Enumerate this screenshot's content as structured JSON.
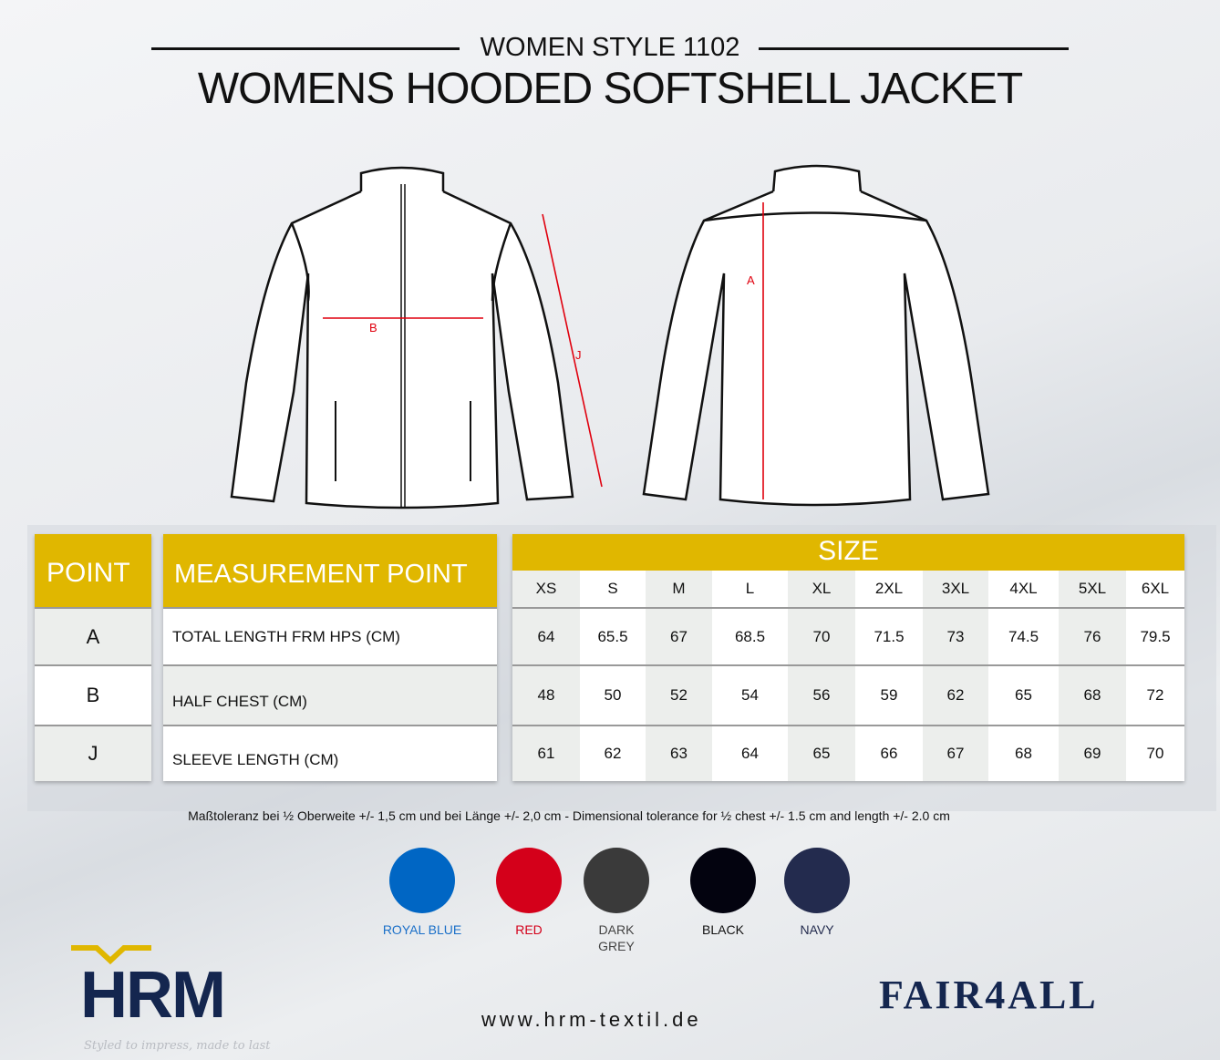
{
  "header": {
    "subtitle": "WOMEN STYLE 1102",
    "title": "WOMENS HOODED SOFTSHELL JACKET"
  },
  "diagram_labels": {
    "a": "A",
    "b": "B",
    "j": "J"
  },
  "table": {
    "point_header": "POINT",
    "measurement_header": "MEASUREMENT POINT",
    "size_header": "SIZE",
    "sizes": [
      "XS",
      "S",
      "M",
      "L",
      "XL",
      "2XL",
      "3XL",
      "4XL",
      "5XL",
      "6XL"
    ],
    "rows": [
      {
        "point": "A",
        "label": "TOTAL LENGTH FRM HPS (CM)",
        "values": [
          "64",
          "65.5",
          "67",
          "68.5",
          "70",
          "71.5",
          "73",
          "74.5",
          "76",
          "79.5"
        ]
      },
      {
        "point": "B",
        "label": "HALF CHEST (CM)",
        "values": [
          "48",
          "50",
          "52",
          "54",
          "56",
          "59",
          "62",
          "65",
          "68",
          "72"
        ]
      },
      {
        "point": "J",
        "label": "SLEEVE LENGTH (CM)",
        "values": [
          "61",
          "62",
          "63",
          "64",
          "65",
          "66",
          "67",
          "68",
          "69",
          "70"
        ]
      }
    ]
  },
  "tolerance": "Maßtoleranz bei ½ Oberweite +/- 1,5 cm und bei Länge +/- 2,0 cm - Dimensional tolerance for ½ chest +/- 1.5 cm and length +/- 2.0 cm",
  "colors": [
    {
      "name": "ROYAL BLUE",
      "hex": "#0066c4",
      "label_color": "#1a6fc8"
    },
    {
      "name": "RED",
      "hex": "#d4001a",
      "label_color": "#d4001a"
    },
    {
      "name": "DARK\nGREY",
      "hex": "#3a3a3a",
      "label_color": "#444444"
    },
    {
      "name": "BLACK",
      "hex": "#03030f",
      "label_color": "#111111"
    },
    {
      "name": "NAVY",
      "hex": "#232b4e",
      "label_color": "#232b4e"
    }
  ],
  "brand": {
    "logo": "HRM",
    "tagline": "Styled to impress, made to last",
    "website": "www.hrm-textil.de",
    "partner_logo": "FAIR4ALL",
    "accent": "#e0b700",
    "navy": "#14264f"
  }
}
